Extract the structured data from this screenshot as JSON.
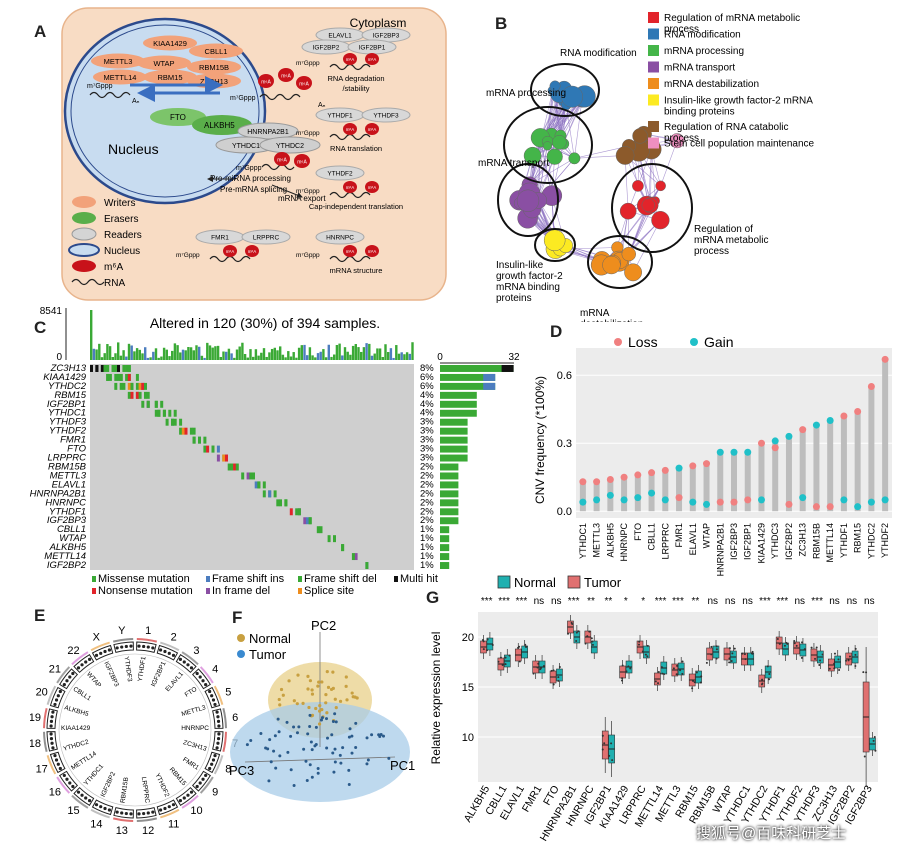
{
  "panels": {
    "a": "A",
    "b": "B",
    "c": "C",
    "d": "D",
    "e": "E",
    "f": "F",
    "g": "G"
  },
  "panelA": {
    "cytoplasm": "Cytoplasm",
    "nucleus": "Nucleus",
    "writers": [
      "KIAA1429",
      "CBLL1",
      "METTL3",
      "WTAP",
      "RBM15B",
      "METTL14",
      "RBM15",
      "ZC3H13"
    ],
    "erasers": [
      "FTO",
      "ALKBH5"
    ],
    "readers_nuc": [
      "HNRNPA2B1",
      "YTHDC1",
      "YTHDC2"
    ],
    "cap": "m⁷Gppp",
    "m6a": "m⁶A",
    "an": "Aₙ",
    "processes": [
      "Pre-miRNA processing",
      "Pre-mRNA splicing",
      "mRNA export"
    ],
    "groups": [
      {
        "readers": [
          "ELAVL1",
          "IGF2BP3",
          "IGF2BP2",
          "IGF2BP1"
        ],
        "caption": "RNA degradation /stability"
      },
      {
        "readers": [
          "YTHDF1",
          "YTHDF3"
        ],
        "caption": "RNA translation"
      },
      {
        "readers": [
          "YTHDF2"
        ],
        "caption": "Cap-independent translation"
      },
      {
        "readers": [
          "FMR1",
          "LRPPRC"
        ],
        "caption": ""
      },
      {
        "readers": [
          "HNRNPC"
        ],
        "caption": "mRNA structure"
      }
    ],
    "legend": [
      "Writers",
      "Erasers",
      "Readers",
      "Nucleus",
      "m⁶A",
      "RNA"
    ]
  },
  "panelB": {
    "legend": [
      {
        "label": "Regulation of mRNA metabolic process",
        "color": "#e2242b"
      },
      {
        "label": "RNA modification",
        "color": "#2f78b5"
      },
      {
        "label": "mRNA processing",
        "color": "#44b549"
      },
      {
        "label": "mRNA transport",
        "color": "#8a4fa3"
      },
      {
        "label": "mRNA destabilization",
        "color": "#ee8d1d"
      },
      {
        "label": "Insulin-like growth factor-2 mRNA binding proteins",
        "color": "#fcea22"
      },
      {
        "label": "Regulation of RNA catabolic process",
        "color": "#8c5a2b"
      },
      {
        "label": "Stem cell population maintenance",
        "color": "#ef8fc0"
      }
    ],
    "cluster_labels": [
      "RNA modification",
      "mRNA processing",
      "mRNA transport",
      "Regulation of mRNA metabolic process",
      "Insulin-like growth factor-2 mRNA binding proteins",
      "mRNA destabilization"
    ]
  },
  "panelC": {
    "title": "Altered in 120 (30%) of 394 samples.",
    "top_ymax": "8541",
    "top_ymin": "0",
    "side_min": "0",
    "side_max": "32",
    "genes": [
      "ZC3H13",
      "KIAA1429",
      "YTHDC2",
      "RBM15",
      "IGF2BP1",
      "YTHDC1",
      "YTHDF3",
      "YTHDF2",
      "FMR1",
      "FTO",
      "LRPPRC",
      "RBM15B",
      "METTL3",
      "ELAVL1",
      "HNRNPA2B1",
      "HNRNPC",
      "YTHDF1",
      "IGF2BP3",
      "CBLL1",
      "WTAP",
      "ALKBH5",
      "METTL14",
      "IGF2BP2"
    ],
    "percents": [
      "8%",
      "6%",
      "6%",
      "4%",
      "4%",
      "4%",
      "3%",
      "3%",
      "3%",
      "3%",
      "3%",
      "2%",
      "2%",
      "2%",
      "2%",
      "2%",
      "2%",
      "2%",
      "1%",
      "1%",
      "1%",
      "1%",
      "1%"
    ],
    "legend": [
      {
        "label": "Missense mutation",
        "color": "#3aa935"
      },
      {
        "label": "Frame shift ins",
        "color": "#4c7dbf"
      },
      {
        "label": "Frame shift del",
        "color": "#3aa935"
      },
      {
        "label": "Multi hit",
        "color": "#111111"
      },
      {
        "label": "Nonsense mutation",
        "color": "#e2242b"
      },
      {
        "label": "In frame del",
        "color": "#8a4fa3"
      },
      {
        "label": "Splice site",
        "color": "#ee8d1d"
      }
    ]
  },
  "panelD": {
    "ylabel": "CNV frequency (*100%)",
    "legend": [
      {
        "label": "Loss",
        "color": "#f08080"
      },
      {
        "label": "Gain",
        "color": "#20c0c8"
      }
    ],
    "chart_data": {
      "type": "scatter",
      "categories": [
        "YTHDC1",
        "METTL3",
        "ALKBH5",
        "HNRNPC",
        "FTO",
        "CBLL1",
        "LRPPRC",
        "FMR1",
        "ELAVL1",
        "WTAP",
        "HNRNPA2B1",
        "IGF2BP3",
        "IGF2BP1",
        "KIAA1429",
        "YTHDC3",
        "IGF2BP2",
        "ZC3H13",
        "RBM15B",
        "METTL14",
        "YTHDF1",
        "RBM15",
        "YTHDC2",
        "YTHDF2"
      ],
      "series": [
        {
          "name": "Loss",
          "values": [
            0.13,
            0.13,
            0.14,
            0.15,
            0.16,
            0.17,
            0.18,
            0.06,
            0.2,
            0.21,
            0.04,
            0.04,
            0.05,
            0.3,
            0.28,
            0.03,
            0.36,
            0.02,
            0.02,
            0.42,
            0.44,
            0.55,
            0.67
          ]
        },
        {
          "name": "Gain",
          "values": [
            0.04,
            0.05,
            0.07,
            0.05,
            0.06,
            0.08,
            0.05,
            0.19,
            0.04,
            0.03,
            0.26,
            0.26,
            0.26,
            0.05,
            0.31,
            0.33,
            0.06,
            0.38,
            0.4,
            0.05,
            0.02,
            0.04,
            0.05
          ]
        }
      ],
      "yticks": [
        "0.0",
        "0.3",
        "0.6"
      ],
      "ylim": [
        -0.03,
        0.72
      ]
    }
  },
  "panelE": {
    "chromosomes": [
      "1",
      "2",
      "3",
      "4",
      "5",
      "6",
      "7",
      "8",
      "9",
      "10",
      "11",
      "12",
      "13",
      "14",
      "15",
      "16",
      "17",
      "18",
      "19",
      "20",
      "21",
      "22",
      "X",
      "Y"
    ],
    "genes": [
      "YTHDF1",
      "IGF2BP1",
      "ELAVL1",
      "FTO",
      "METTL3",
      "HNRNPC",
      "ZC3H13",
      "FMR1",
      "RBM15",
      "YTHDF2",
      "LRPPRC",
      "RBM15B",
      "IGF2BP2",
      "YTHDC1",
      "METTL14",
      "YTHDC2",
      "KIAA1429",
      "ALKBH5",
      "CBLL1",
      "WTAP",
      "IGF2BP3",
      "YTHDF3"
    ]
  },
  "panelF": {
    "legend": [
      {
        "label": "Normal",
        "color": "#c8a040"
      },
      {
        "label": "Tumor",
        "color": "#3a8ad0"
      }
    ],
    "axes": [
      "PC1",
      "PC2",
      "PC3"
    ]
  },
  "panelG": {
    "legend": [
      {
        "label": "Normal",
        "color": "#20b0b0"
      },
      {
        "label": "Tumor",
        "color": "#e07070"
      }
    ],
    "ylabel": "Relative expression level",
    "yticks": [
      "10",
      "15",
      "20"
    ],
    "chart_data": {
      "type": "box",
      "categories": [
        "ALKBH5",
        "CBLL1",
        "ELAVL1",
        "FMR1",
        "FTO",
        "HNRNPA2B1",
        "HNRNPC",
        "IGF2BP1",
        "KIAA1429",
        "LRPPRC",
        "METTL14",
        "METTL3",
        "RBM15",
        "RBM15B",
        "WTAP",
        "YTHDC1",
        "YTHDC2",
        "YTHDF1",
        "YTHDF2",
        "YTHDF3",
        "ZC3H13",
        "IGF2BP2",
        "IGF2BP3"
      ],
      "significance": [
        "***",
        "***",
        "***",
        "ns",
        "ns",
        "***",
        "**",
        "**",
        "*",
        "*",
        "***",
        "***",
        "**",
        "ns",
        "ns",
        "ns",
        "***",
        "***",
        "ns",
        "***",
        "ns",
        "ns",
        "ns"
      ],
      "series": [
        {
          "name": "Normal",
          "medians": [
            19.3,
            17.6,
            18.5,
            17.0,
            16.2,
            20.0,
            19.0,
            8.8,
            17.0,
            18.5,
            16.9,
            16.8,
            16.0,
            18.5,
            18.0,
            17.8,
            16.5,
            18.8,
            18.7,
            18.0,
            17.5,
            18.0,
            9.3
          ]
        },
        {
          "name": "Tumor",
          "medians": [
            19.0,
            17.3,
            18.2,
            17.0,
            16.0,
            21.0,
            20.0,
            9.2,
            16.5,
            19.0,
            15.8,
            16.7,
            15.7,
            18.3,
            18.3,
            17.8,
            15.6,
            19.4,
            18.9,
            18.2,
            17.2,
            17.8,
            12.0
          ]
        }
      ],
      "ylim": [
        5.5,
        22.5
      ]
    }
  },
  "watermark": "搜狐号@百味科研芝士"
}
